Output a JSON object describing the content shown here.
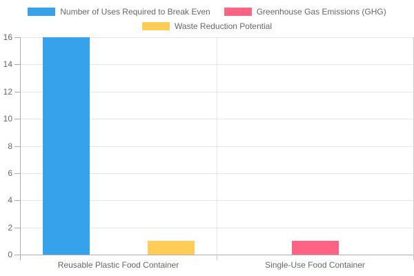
{
  "chart_data": {
    "type": "bar",
    "title": "",
    "categories": [
      "Reusable Plastic Food Container",
      "Single-Use Food Container"
    ],
    "series": [
      {
        "name": "Number of Uses Required to Break Even",
        "color": "#36A2EB",
        "values": [
          16,
          0
        ]
      },
      {
        "name": "Greenhouse Gas Emissions (GHG)",
        "color": "#FF6384",
        "values": [
          0,
          1
        ]
      },
      {
        "name": "Waste Reduction Potential",
        "color": "#FFCD56",
        "values": [
          1,
          0
        ]
      }
    ],
    "xlabel": "",
    "ylabel": "",
    "ylim": [
      0,
      16
    ],
    "yticks": [
      0,
      2,
      4,
      6,
      8,
      10,
      12,
      14,
      16
    ],
    "grid": true,
    "legend_position": "top",
    "colors": {
      "background": "#FFFFFF",
      "gridline": "#E6E6E6",
      "axis_line": "#ABABAB",
      "zero_line": "#B0B0B0",
      "edge_line": "#C9C9C9",
      "tick_label": "#666666",
      "legend_text": "#666666"
    }
  }
}
